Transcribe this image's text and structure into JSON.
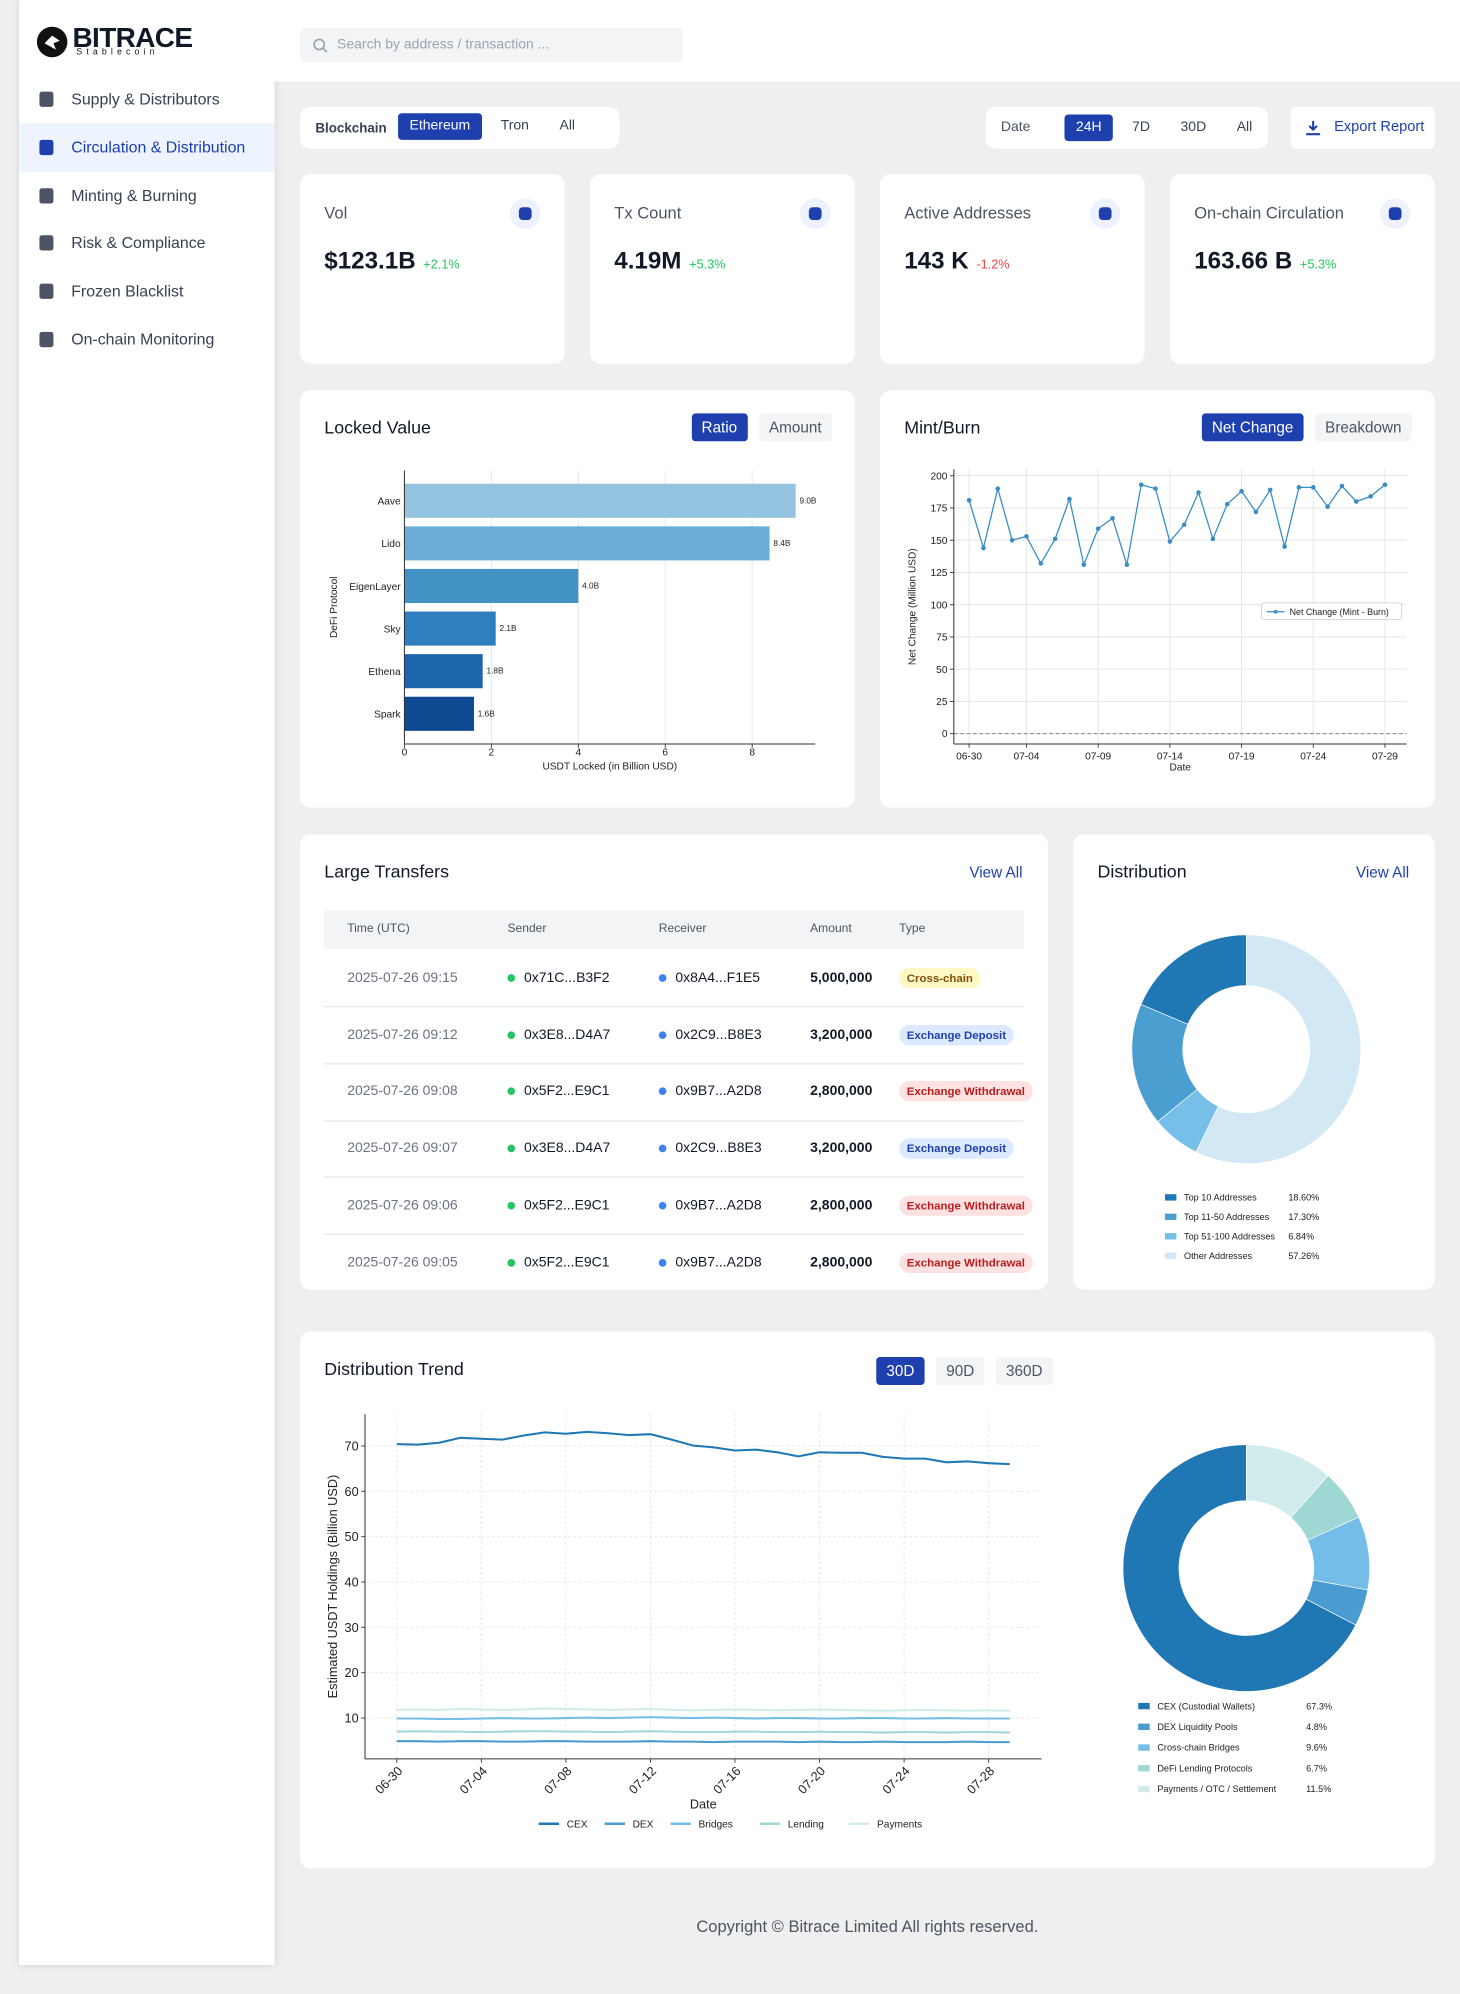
{
  "brand": {
    "name": "BITRACE",
    "tagline": "Stablecoin"
  },
  "nav": {
    "items": [
      "Supply  & Distributors",
      "Circulation & Distribution",
      "Minting & Burning",
      "Risk & Compliance",
      "Frozen Blacklist",
      "On-chain Monitoring"
    ],
    "active": 1
  },
  "search": {
    "placeholder": "Search by address / transaction ..."
  },
  "filters": {
    "blockchain": {
      "label": "Blockchain",
      "options": [
        "Ethereum",
        "Tron",
        "All"
      ],
      "selected": 0
    },
    "date": {
      "label": "Date",
      "options": [
        "24H",
        "7D",
        "30D",
        "All"
      ],
      "selected": 0
    },
    "export": "Export Report"
  },
  "stats": [
    {
      "label": "Vol",
      "value": "$123.1B",
      "change": "+2.1%",
      "trend": "up"
    },
    {
      "label": "Tx Count",
      "value": "4.19M",
      "change": "+5.3%",
      "trend": "up"
    },
    {
      "label": "Active Addresses",
      "value": "143 K",
      "change": "-1.2%",
      "trend": "down"
    },
    {
      "label": "On-chain Circulation",
      "value": "163.66 B",
      "change": "+5.3%",
      "trend": "up"
    }
  ],
  "panels": {
    "locked": {
      "toggles": [
        "Ratio",
        "Amount"
      ],
      "selected": 0
    },
    "mint": {
      "toggles": [
        "Net Change",
        "Breakdown"
      ],
      "selected": 0
    },
    "transfers": {
      "title": "Large Transfers",
      "link": "View All"
    },
    "distribution": {
      "link": "View All"
    },
    "trend": {
      "toggles": [
        "30D",
        "90D",
        "360D"
      ],
      "selected": 0
    }
  },
  "transfers": {
    "columns": [
      "Time (UTC)",
      "Sender",
      "Receiver",
      "Amount",
      "Type"
    ],
    "rows": [
      {
        "time": "2025-07-26 09:15",
        "sender": "0x71C...B3F2",
        "receiver": "0x8A4...F1E5",
        "amount": "5,000,000",
        "type": "Cross-chain",
        "badge": "yellow"
      },
      {
        "time": "2025-07-26 09:12",
        "sender": "0x3E8...D4A7",
        "receiver": "0x2C9...B8E3",
        "amount": "3,200,000",
        "type": "Exchange Deposit",
        "badge": "blue"
      },
      {
        "time": "2025-07-26 09:08",
        "sender": "0x5F2...E9C1",
        "receiver": "0x9B7...A2D8",
        "amount": "2,800,000",
        "type": "Exchange Withdrawal",
        "badge": "red"
      },
      {
        "time": "2025-07-26 09:07",
        "sender": "0x3E8...D4A7",
        "receiver": "0x2C9...B8E3",
        "amount": "3,200,000",
        "type": "Exchange Deposit",
        "badge": "blue"
      },
      {
        "time": "2025-07-26 09:06",
        "sender": "0x5F2...E9C1",
        "receiver": "0x9B7...A2D8",
        "amount": "2,800,000",
        "type": "Exchange Withdrawal",
        "badge": "red"
      },
      {
        "time": "2025-07-26 09:05",
        "sender": "0x5F2...E9C1",
        "receiver": "0x9B7...A2D8",
        "amount": "2,800,000",
        "type": "Exchange Withdrawal",
        "badge": "red"
      }
    ]
  },
  "footer": "Copyright © Bitrace Limited All rights reserved.",
  "chart_data": [
    {
      "type": "bar",
      "orientation": "horizontal",
      "title": "Locked Value",
      "categories": [
        "Aave",
        "Lido",
        "EigenLayer",
        "Sky",
        "Ethena",
        "Spark"
      ],
      "values": [
        9.0,
        8.4,
        4.0,
        2.1,
        1.8,
        1.6
      ],
      "value_labels": [
        "9.0B",
        "8.4B",
        "4.0B",
        "2.1B",
        "1.8B",
        "1.6B"
      ],
      "colors": [
        "#94c4df",
        "#6aaed6",
        "#4292c6",
        "#2f7fc0",
        "#1c64ac",
        "#0d4a92"
      ],
      "xlabel": "USDT Locked (in Billion USD)",
      "ylabel": "DeFi Protocol",
      "xlim": [
        0,
        9.45
      ],
      "xticks": [
        0,
        2,
        4,
        6,
        8
      ],
      "grid": true
    },
    {
      "type": "line",
      "title": "Mint/Burn",
      "categories": [
        "06-30",
        null,
        null,
        null,
        "07-04",
        null,
        null,
        null,
        null,
        "07-09",
        null,
        null,
        null,
        null,
        "07-14",
        null,
        null,
        null,
        null,
        "07-19",
        null,
        null,
        null,
        null,
        "07-24",
        null,
        null,
        null,
        null,
        "07-29"
      ],
      "series": [
        {
          "name": "Net Change (Mint - Burn)",
          "color": "#3a8cc4",
          "values": [
            181,
            144,
            190,
            150,
            153,
            132,
            151,
            182,
            131,
            159,
            167,
            131,
            193,
            190,
            149,
            162,
            187,
            151,
            178,
            188,
            172,
            189,
            145,
            191,
            191,
            176,
            192,
            180,
            184,
            193
          ]
        }
      ],
      "xlabel": "Date",
      "ylabel": "Net Change (Million USD)",
      "ylim": [
        -8,
        205
      ],
      "yticks": [
        0,
        25,
        50,
        75,
        100,
        125,
        150,
        175,
        200
      ],
      "hlines": [
        0
      ],
      "markers": true,
      "grid": true,
      "legend": "center right"
    },
    {
      "type": "pie",
      "title": "Distribution",
      "donut": true,
      "categories": [
        "Top 10 Addresses",
        "Top 11-50 Addresses",
        "Top 51-100 Addresses",
        "Other Addresses"
      ],
      "values": [
        18.6,
        17.3,
        6.84,
        57.26
      ],
      "value_labels": [
        "18.60%",
        "17.30%",
        "6.84%",
        "57.26%"
      ],
      "colors": [
        "#1f77b4",
        "#4a9fd0",
        "#76bfe8",
        "#d3e8f5"
      ]
    },
    {
      "type": "line",
      "title": "Distribution Trend",
      "categories": [
        "06-30",
        null,
        null,
        null,
        "07-04",
        null,
        null,
        null,
        "07-08",
        null,
        null,
        null,
        "07-12",
        null,
        null,
        null,
        "07-16",
        null,
        null,
        null,
        "07-20",
        null,
        null,
        null,
        "07-24",
        null,
        null,
        null,
        "07-28",
        null
      ],
      "series": [
        {
          "name": "CEX",
          "color": "#1f77b4",
          "values": [
            70.4,
            70.3,
            70.7,
            71.8,
            71.6,
            71.4,
            72.3,
            73.0,
            72.7,
            73.1,
            72.8,
            72.4,
            72.6,
            71.4,
            70.1,
            69.7,
            69.0,
            69.2,
            68.6,
            67.7,
            68.6,
            68.5,
            68.5,
            67.6,
            67.2,
            67.2,
            66.4,
            66.6,
            66.2,
            66.0
          ]
        },
        {
          "name": "DEX",
          "color": "#4a9bd0",
          "values": [
            4.9,
            4.9,
            4.8,
            4.9,
            4.9,
            4.8,
            4.8,
            4.9,
            4.9,
            4.8,
            4.8,
            4.8,
            4.9,
            4.8,
            4.8,
            4.7,
            4.8,
            4.8,
            4.8,
            4.7,
            4.8,
            4.7,
            4.7,
            4.8,
            4.7,
            4.7,
            4.7,
            4.8,
            4.7,
            4.7
          ]
        },
        {
          "name": "Bridges",
          "color": "#74bde8",
          "values": [
            9.9,
            9.9,
            9.8,
            9.8,
            9.9,
            10.0,
            9.9,
            9.9,
            10.0,
            10.1,
            10.0,
            10.1,
            10.2,
            10.1,
            10.0,
            10.1,
            10.0,
            9.9,
            10.0,
            10.0,
            9.9,
            9.9,
            10.0,
            10.0,
            9.9,
            9.9,
            10.0,
            9.9,
            9.9,
            9.9
          ]
        },
        {
          "name": "Lending",
          "color": "#9ed7d3",
          "values": [
            7.0,
            7.1,
            7.0,
            7.0,
            6.9,
            7.0,
            7.1,
            7.1,
            7.0,
            7.0,
            6.9,
            7.0,
            7.1,
            7.0,
            6.9,
            6.9,
            7.0,
            7.0,
            6.9,
            6.9,
            7.0,
            6.9,
            6.9,
            6.8,
            6.9,
            6.9,
            6.8,
            6.9,
            6.9,
            6.8
          ]
        },
        {
          "name": "Payments",
          "color": "#d1ecec",
          "values": [
            11.8,
            11.9,
            11.8,
            12.0,
            11.9,
            11.8,
            11.9,
            12.1,
            12.0,
            11.9,
            11.8,
            11.9,
            12.0,
            11.8,
            11.7,
            11.8,
            11.9,
            11.8,
            11.7,
            11.8,
            11.9,
            11.8,
            11.7,
            11.6,
            11.7,
            11.8,
            11.7,
            11.6,
            11.7,
            11.6
          ]
        }
      ],
      "xlabel": "Date",
      "ylabel": "Estimated USDT Holdings (Billion USD)",
      "ylim": [
        1,
        77
      ],
      "yticks": [
        10,
        20,
        30,
        40,
        50,
        60,
        70
      ],
      "xtick_rotation": 45,
      "grid": true,
      "legend": "lower center"
    },
    {
      "type": "pie",
      "donut": true,
      "categories": [
        "CEX (Custodial Wallets)",
        "DEX Liquidity Pools",
        "Cross-chain Bridges",
        "DeFi Lending Protocols",
        "Payments / OTC / Settlement"
      ],
      "values": [
        67.3,
        4.8,
        9.6,
        6.7,
        11.5
      ],
      "value_labels": [
        "67.3%",
        "4.8%",
        "9.6%",
        "6.7%",
        "11.5%"
      ],
      "colors": [
        "#1f77b4",
        "#4a9bd0",
        "#74bde8",
        "#9ed7d3",
        "#d1ecec"
      ]
    }
  ]
}
